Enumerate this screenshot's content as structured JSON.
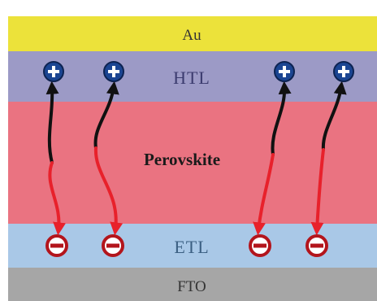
{
  "layers": {
    "au": "Au",
    "htl": "HTL",
    "perovskite": "Perovskite",
    "etl": "ETL",
    "fto": "FTO"
  },
  "colors": {
    "au": "#ece23a",
    "htl": "#9c9ac6",
    "perovskite": "#ea7381",
    "etl": "#a9c8e7",
    "fto": "#a6a6a6",
    "hole_path": "#111111",
    "electron_path": "#e8212b",
    "charge_ring": "#b3151c",
    "hole_fill": "#1b4592"
  },
  "charges": {
    "hole_icon": "plus-circle-icon",
    "electron_icon": "minus-circle-icon"
  }
}
